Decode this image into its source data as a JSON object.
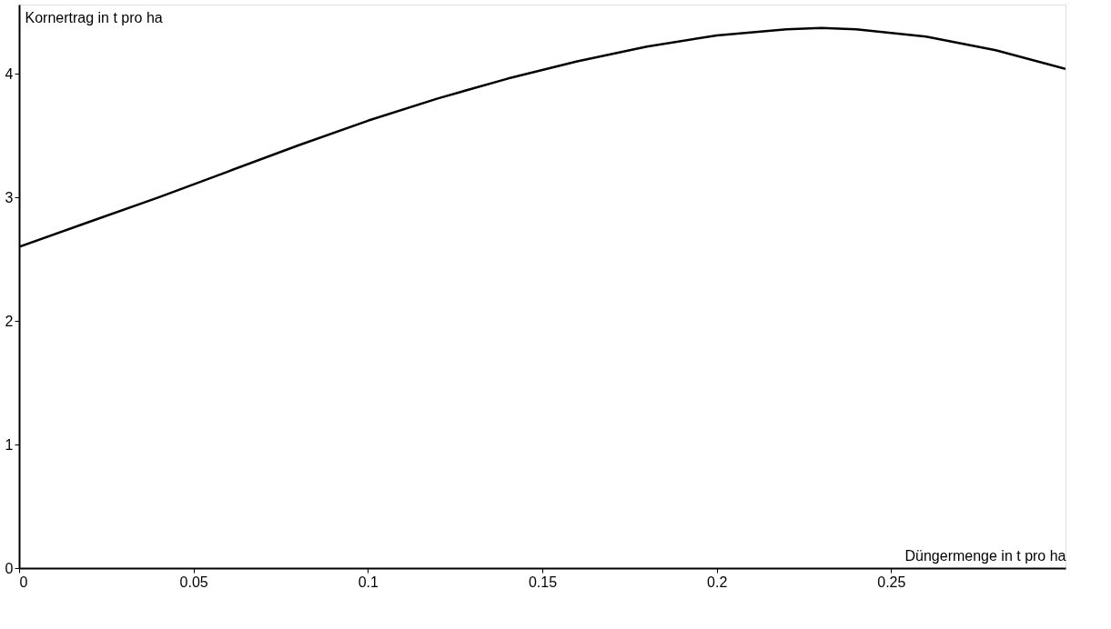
{
  "chart_data": {
    "type": "line",
    "xlabel": "Düngermenge in t pro ha",
    "ylabel": "Kornertrag in t pro ha",
    "x": [
      0,
      0.02,
      0.04,
      0.06,
      0.08,
      0.1,
      0.12,
      0.14,
      0.16,
      0.18,
      0.2,
      0.22,
      0.23,
      0.24,
      0.26,
      0.28,
      0.3
    ],
    "series": [
      {
        "color": "#000000",
        "values": [
          2.6,
          2.8,
          3.0,
          3.21,
          3.42,
          3.62,
          3.8,
          3.96,
          4.1,
          4.22,
          4.31,
          4.36,
          4.37,
          4.36,
          4.3,
          4.19,
          4.04
        ]
      }
    ],
    "xlim": [
      0,
      0.3
    ],
    "ylim": [
      0,
      4.56
    ],
    "xticks": [
      0,
      0.05,
      0.1,
      0.15,
      0.2,
      0.25
    ],
    "yticks": [
      0,
      1,
      2,
      3,
      4
    ],
    "grid": false,
    "marker": "none",
    "line_style": "solid"
  }
}
